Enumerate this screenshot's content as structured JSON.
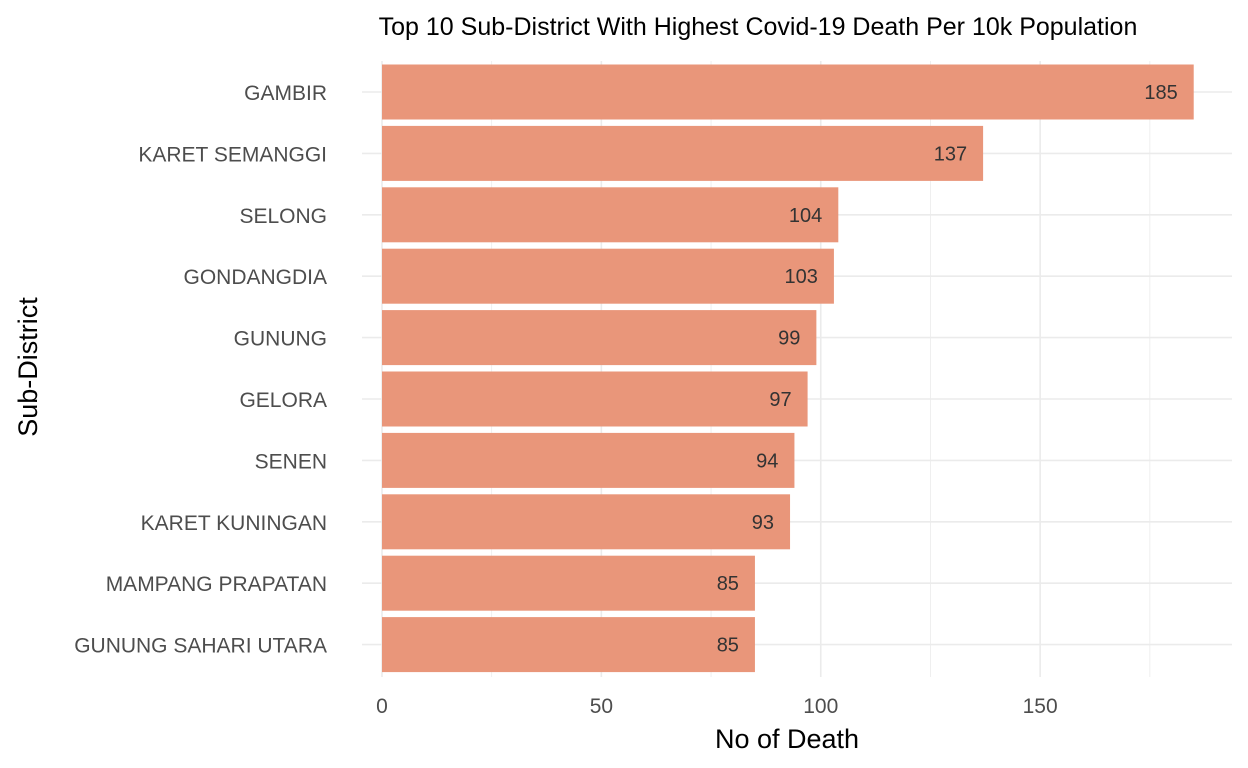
{
  "chart_data": {
    "type": "bar",
    "orientation": "horizontal",
    "title": "Top 10 Sub-District With Highest Covid-19 Death Per 10k Population",
    "xlabel": "No of Death",
    "ylabel": "Sub-District",
    "categories": [
      "GAMBIR",
      "KARET SEMANGGI",
      "SELONG",
      "GONDANGDIA",
      "GUNUNG",
      "GELORA",
      "SENEN",
      "KARET KUNINGAN",
      "MAMPANG PRAPATAN",
      "GUNUNG SAHARI UTARA"
    ],
    "values": [
      185,
      137,
      104,
      103,
      99,
      97,
      94,
      93,
      85,
      85
    ],
    "data_labels": [
      "185",
      "137",
      "104",
      "103",
      "99",
      "97",
      "94",
      "93",
      "85",
      "85"
    ],
    "x_ticks": [
      0,
      50,
      100,
      150
    ],
    "x_tick_labels": [
      "0",
      "50",
      "100",
      "150"
    ],
    "xlim": [
      0,
      194
    ],
    "grid": true,
    "legend": "none",
    "colors": {
      "bar": "#E9967A",
      "grid": "#ebebeb",
      "background": "#ffffff"
    }
  }
}
